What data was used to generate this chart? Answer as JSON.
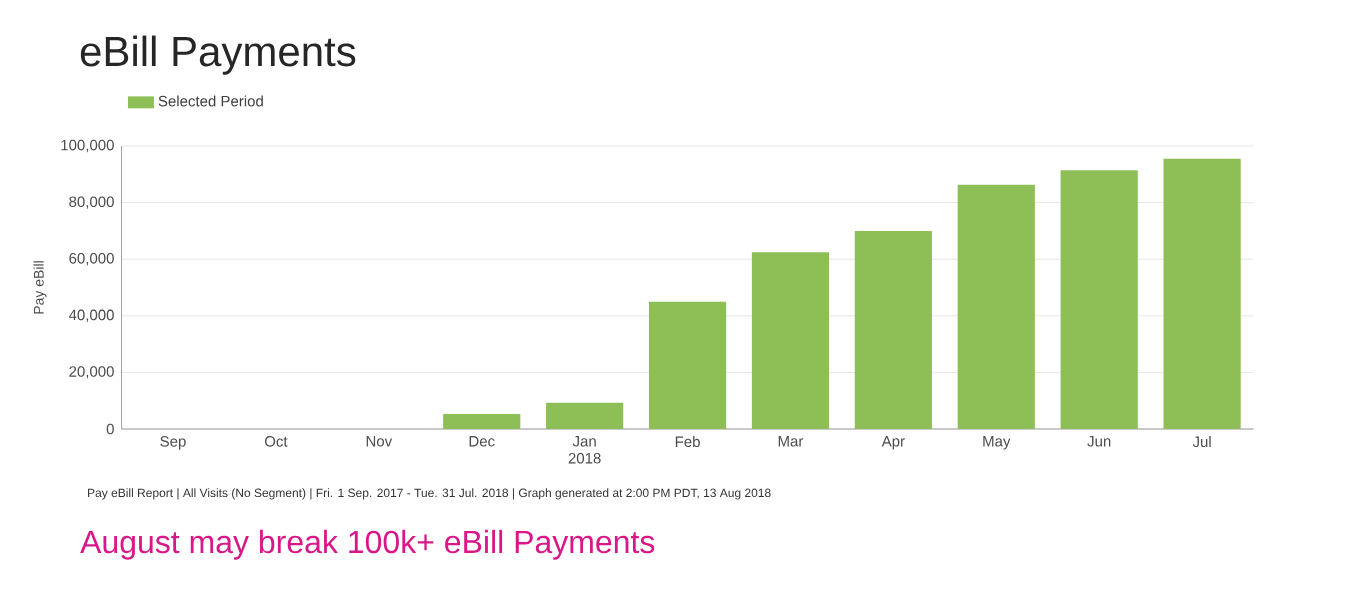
{
  "chart_data": {
    "type": "bar",
    "title": "eBill Payments",
    "ylabel": "Pay eBill",
    "categories": [
      "Sep",
      "Oct",
      "Nov",
      "Dec",
      "Jan 2018",
      "Feb",
      "Mar",
      "Apr",
      "May",
      "Jun",
      "Jul"
    ],
    "series": [
      {
        "name": "Selected Period",
        "color": "#8dbf56",
        "values": [
          0,
          0,
          0,
          5300,
          9300,
          45000,
          62500,
          70000,
          86300,
          91400,
          95500
        ]
      }
    ],
    "ylim": [
      0,
      100000
    ],
    "yticks": [
      {
        "value": 0,
        "label": "0"
      },
      {
        "value": 20000,
        "label": "20,000"
      },
      {
        "value": 40000,
        "label": "40,000"
      },
      {
        "value": 60000,
        "label": "60,000"
      },
      {
        "value": 80000,
        "label": "80,000"
      },
      {
        "value": 100000,
        "label": "100,000"
      }
    ],
    "grid": "y",
    "legend": "top left",
    "annotations": [
      "Pay eBill Report | All Visits (No Segment) | Fri.  1 Sep. 2017 - Tue. 31 Jul. 2018 | Graph generated at  2:00 PM PDT, 13 Aug 2018",
      "August may break 100k+ eBill Payments"
    ]
  }
}
